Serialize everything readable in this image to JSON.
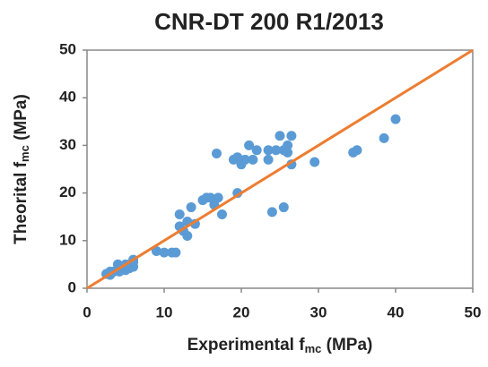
{
  "chart_data": {
    "type": "scatter",
    "title": "CNR-DT 200 R1/2013",
    "xlabel_parts": [
      "Experimental  f",
      "mc",
      " (MPa)"
    ],
    "ylabel_parts": [
      "Theorital  f",
      "mc",
      " (MPa)"
    ],
    "xlim": [
      0,
      50
    ],
    "ylim": [
      0,
      50
    ],
    "xticks": [
      0,
      10,
      20,
      30,
      40,
      50
    ],
    "yticks": [
      0,
      10,
      20,
      30,
      40,
      50
    ],
    "series": [
      {
        "color": "#5b9bd5",
        "x": [
          2.5,
          3,
          3.5,
          4,
          4.2,
          4.5,
          5,
          5,
          5.5,
          5.5,
          6,
          6,
          3,
          4,
          5,
          6,
          9,
          10,
          11,
          11.5,
          12,
          12,
          12.5,
          13,
          13,
          13.5,
          14,
          15,
          15.5,
          16,
          16.5,
          17,
          17.5,
          16.8,
          19,
          19.5,
          19.5,
          20,
          20.5,
          21,
          21.5,
          22,
          23.5,
          23.5,
          24,
          24.5,
          25,
          25.5,
          25.5,
          26,
          26,
          26.5,
          26.5,
          29.5,
          34.5,
          35,
          38.5,
          40
        ],
        "values": [
          3,
          2.8,
          3.5,
          4,
          3.5,
          4.5,
          4,
          5,
          5,
          4.2,
          5.5,
          4.5,
          3.5,
          5,
          3.8,
          6,
          7.8,
          7.5,
          7.5,
          7.5,
          15.5,
          13,
          12,
          11,
          14,
          17,
          13.5,
          18.5,
          19,
          19,
          17.5,
          19,
          15.5,
          28.3,
          27,
          27.5,
          20,
          26,
          27,
          30,
          27,
          29,
          27,
          29,
          16,
          29,
          32,
          17,
          29,
          30,
          28.5,
          32,
          26,
          26.5,
          28.5,
          29,
          31.5,
          35.5
        ]
      }
    ],
    "reference_line": {
      "x": [
        0,
        50
      ],
      "y": [
        0,
        50
      ],
      "color": "#ed7d31"
    }
  }
}
